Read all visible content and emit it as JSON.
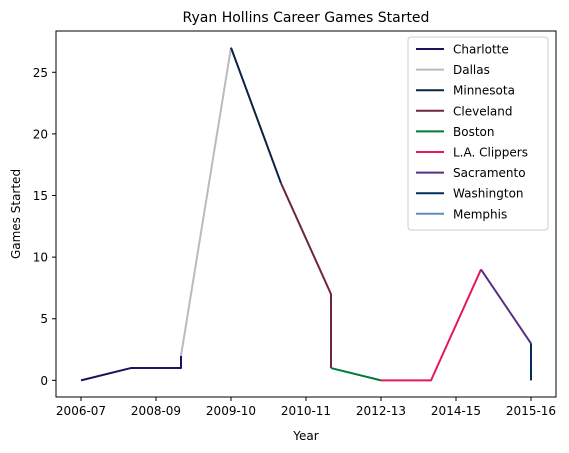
{
  "chart_data": {
    "type": "line",
    "title": "Ryan Hollins Career Games Started",
    "xlabel": "Year",
    "ylabel": "Games Started",
    "x_ticks": [
      "2006-07",
      "2008-09",
      "2009-10",
      "2010-11",
      "2012-13",
      "2014-15",
      "2015-16"
    ],
    "y_ticks": [
      0,
      5,
      10,
      15,
      20,
      25
    ],
    "xlim": [
      -0.5,
      9.5
    ],
    "ylim": [
      -1.35,
      28.35
    ],
    "legend_position": "top-right",
    "grid": false,
    "series": [
      {
        "name": "Charlotte",
        "color": "#1d1160",
        "points": [
          [
            0,
            0
          ],
          [
            1,
            1
          ],
          [
            2,
            1
          ],
          [
            2,
            2
          ]
        ]
      },
      {
        "name": "Dallas",
        "color": "#bbbbbb",
        "points": [
          [
            2,
            2
          ],
          [
            3,
            27
          ]
        ]
      },
      {
        "name": "Minnesota",
        "color": "#0c2340",
        "points": [
          [
            3,
            27
          ],
          [
            4,
            16
          ]
        ]
      },
      {
        "name": "Cleveland",
        "color": "#6f263d",
        "points": [
          [
            4,
            16
          ],
          [
            5,
            7
          ],
          [
            5,
            1
          ]
        ]
      },
      {
        "name": "Boston",
        "color": "#007a33",
        "points": [
          [
            5,
            1
          ],
          [
            6,
            0
          ]
        ]
      },
      {
        "name": "L.A. Clippers",
        "color": "#e31a55",
        "points": [
          [
            6,
            0
          ],
          [
            7,
            0
          ],
          [
            8,
            9
          ]
        ]
      },
      {
        "name": "Sacramento",
        "color": "#5a2d81",
        "points": [
          [
            8,
            9
          ],
          [
            9,
            3
          ]
        ]
      },
      {
        "name": "Washington",
        "color": "#002b5c",
        "points": [
          [
            9,
            3
          ],
          [
            9,
            0
          ]
        ]
      },
      {
        "name": "Memphis",
        "color": "#5d8ac0",
        "points": []
      }
    ]
  }
}
